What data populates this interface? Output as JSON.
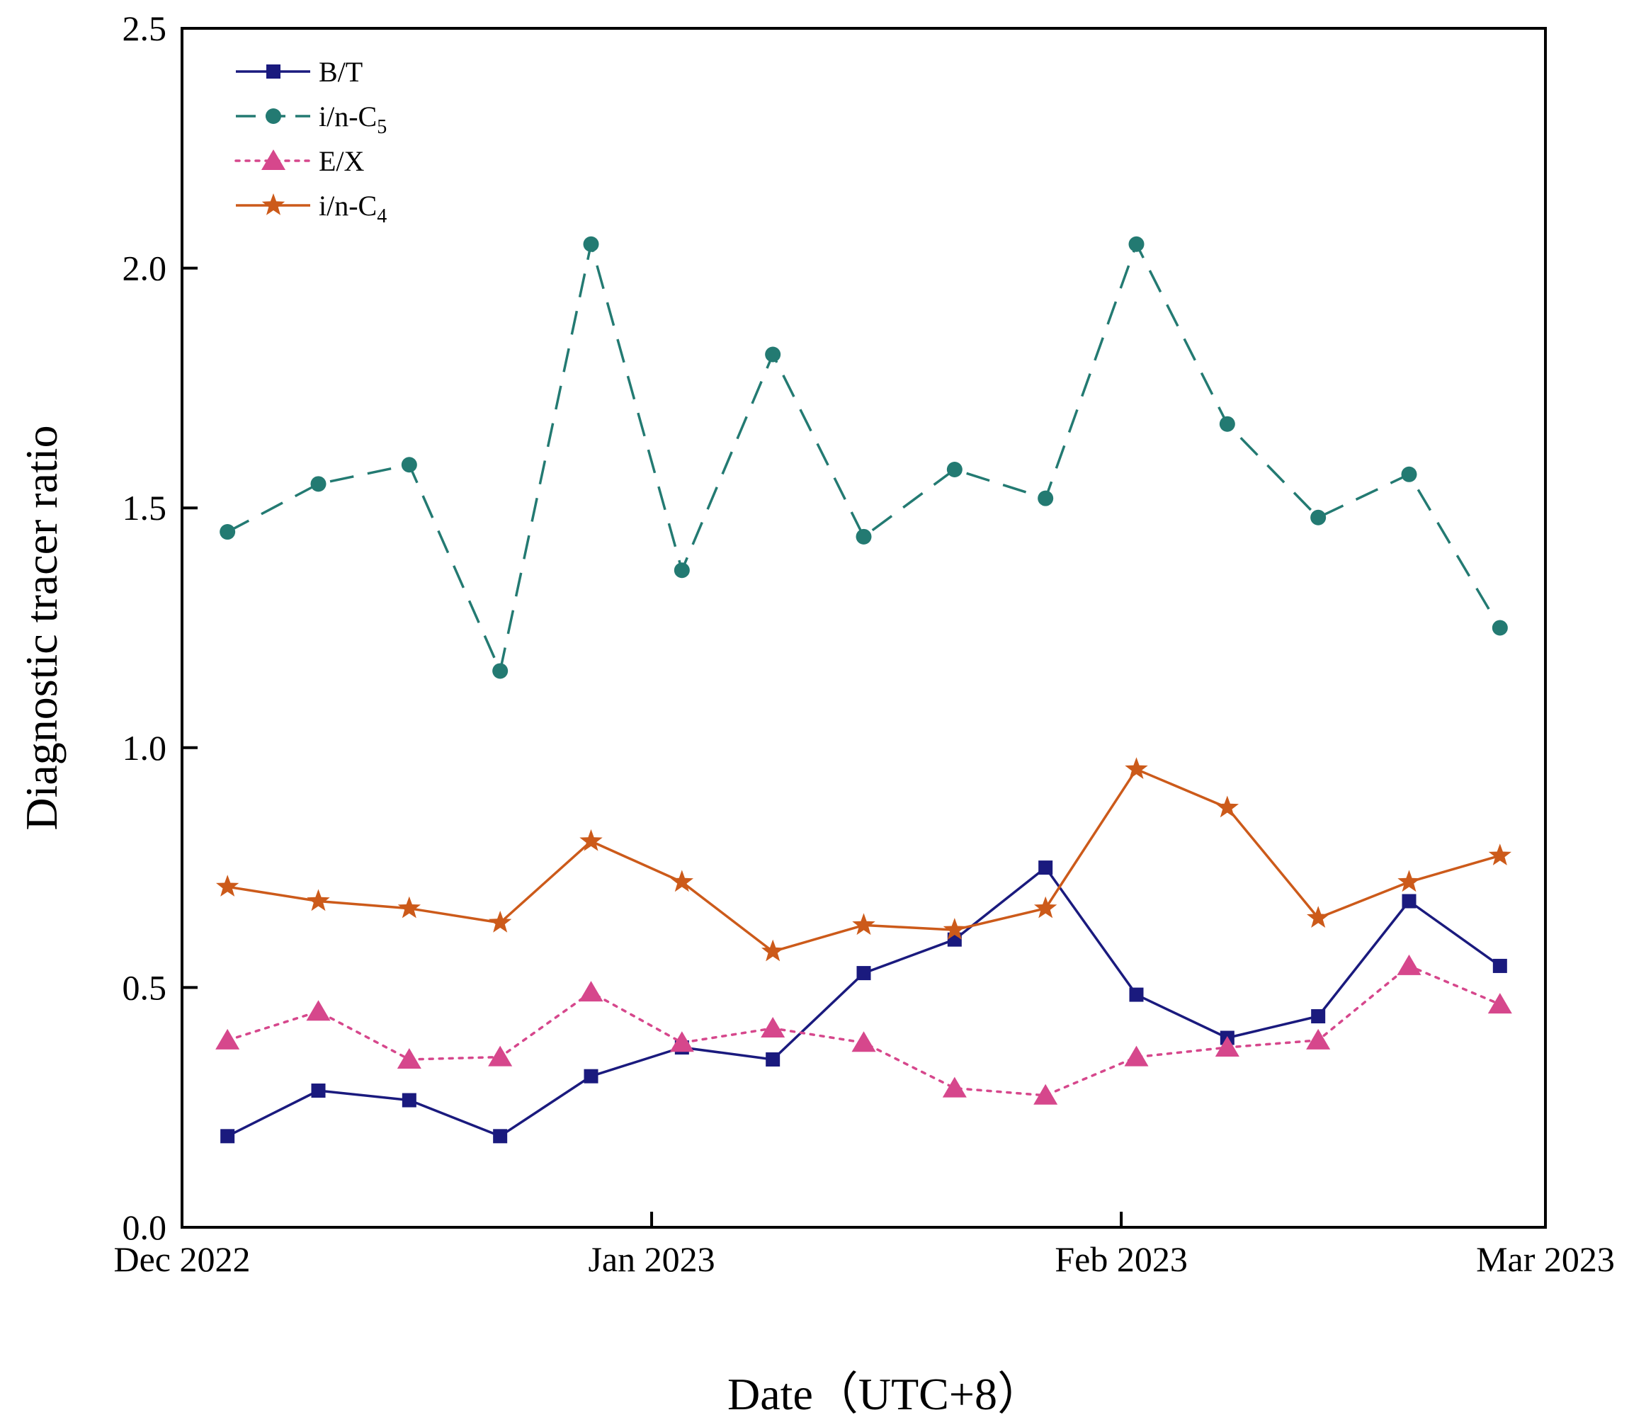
{
  "chart_data": {
    "type": "line",
    "title": "",
    "xlabel": "Date（UTC+8）",
    "ylabel": "Diagnostic tracer ratio",
    "ylim": [
      0,
      2.5
    ],
    "yticks": [
      "0.0",
      "0.5",
      "1.0",
      "1.5",
      "2.0",
      "2.5"
    ],
    "xticks": [
      {
        "label": "Dec 2022",
        "day": 0
      },
      {
        "label": "Jan 2023",
        "day": 31
      },
      {
        "label": "Feb 2023",
        "day": 62
      },
      {
        "label": "Mar 2023",
        "day": 90
      }
    ],
    "xlim_days": [
      0,
      90
    ],
    "x_days": [
      3,
      9,
      15,
      21,
      27,
      33,
      39,
      45,
      51,
      57,
      63,
      69,
      75,
      81,
      87
    ],
    "grid": false,
    "legend_position": "top-left",
    "series": [
      {
        "name": "B/T",
        "label_main": "B/T",
        "label_sub": "",
        "color": "#1a1a7e",
        "marker": "square",
        "line": "solid",
        "values": [
          0.19,
          0.285,
          0.265,
          0.19,
          0.315,
          0.375,
          0.35,
          0.53,
          0.6,
          0.75,
          0.485,
          0.395,
          0.44,
          0.68,
          0.545
        ]
      },
      {
        "name": "i/n-C5",
        "label_main": "i/n-C",
        "label_sub": "5",
        "color": "#237a72",
        "marker": "circle",
        "line": "dashed",
        "values": [
          1.45,
          1.55,
          1.59,
          1.16,
          2.05,
          1.37,
          1.82,
          1.44,
          1.58,
          1.52,
          2.05,
          1.675,
          1.48,
          1.57,
          1.25
        ]
      },
      {
        "name": "E/X",
        "label_main": "E/X",
        "label_sub": "",
        "color": "#d6478c",
        "marker": "triangle",
        "line": "dotted",
        "values": [
          0.39,
          0.45,
          0.35,
          0.355,
          0.49,
          0.385,
          0.415,
          0.385,
          0.29,
          0.275,
          0.355,
          0.375,
          0.39,
          0.545,
          0.465
        ]
      },
      {
        "name": "i/n-C4",
        "label_main": "i/n-C",
        "label_sub": "4",
        "color": "#cc5a1a",
        "marker": "star",
        "line": "solid",
        "values": [
          0.71,
          0.68,
          0.665,
          0.635,
          0.805,
          0.72,
          0.575,
          0.63,
          0.62,
          0.665,
          0.955,
          0.875,
          0.645,
          0.72,
          0.775
        ]
      }
    ]
  }
}
